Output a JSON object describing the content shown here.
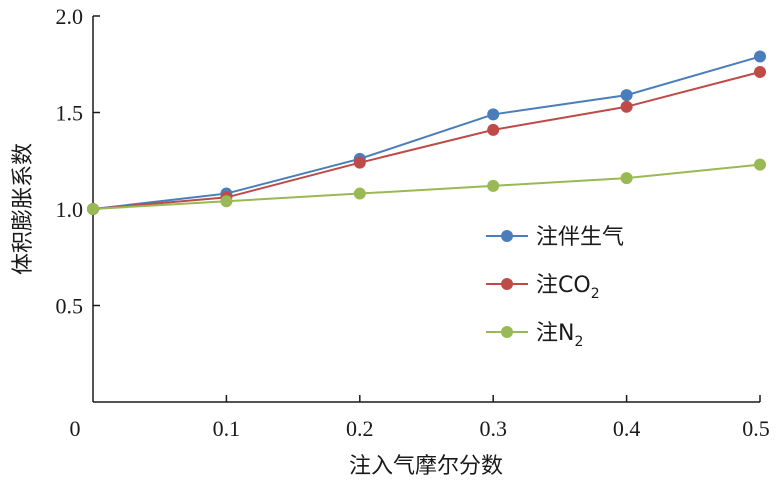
{
  "chart_data": {
    "type": "line",
    "xlabel": "注入气摩尔分数",
    "ylabel": "体积膨胀系数",
    "x": [
      0,
      0.1,
      0.2,
      0.3,
      0.4,
      0.5
    ],
    "xticks": [
      "0",
      "0.1",
      "0.2",
      "0.3",
      "0.4",
      "0.5"
    ],
    "yticks": [
      "0.5",
      "1.0",
      "1.5",
      "2.0"
    ],
    "xlim": [
      0,
      0.5
    ],
    "ylim": [
      0,
      2.0
    ],
    "grid": false,
    "legend_position": "right",
    "series": [
      {
        "name": "注伴生气",
        "label_main": "注伴生气",
        "label_sub": "",
        "color": "#4a7ebb",
        "values": [
          1.0,
          1.08,
          1.26,
          1.49,
          1.59,
          1.79
        ]
      },
      {
        "name": "注CO2",
        "label_main": "注CO",
        "label_sub": "2",
        "color": "#be4b48",
        "values": [
          1.0,
          1.06,
          1.24,
          1.41,
          1.53,
          1.71
        ]
      },
      {
        "name": "注N2",
        "label_main": "注N",
        "label_sub": "2",
        "color": "#98b954",
        "values": [
          1.0,
          1.04,
          1.08,
          1.12,
          1.16,
          1.23
        ]
      }
    ]
  }
}
